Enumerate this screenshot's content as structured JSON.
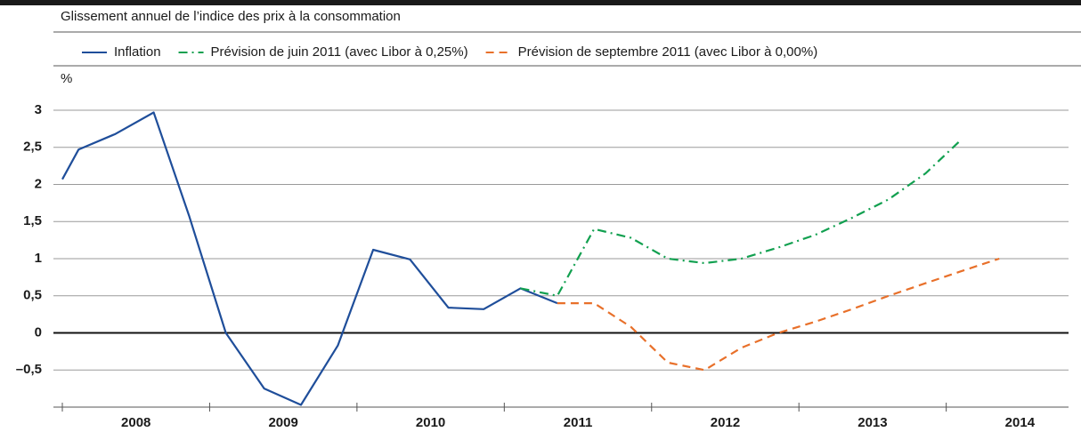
{
  "chart_data": {
    "type": "line",
    "subtitle": "Glissement annuel de l’indice des prix à la consommation",
    "y_label": "%",
    "xlim": [
      2008,
      2014.8
    ],
    "xticks": [
      {
        "value": 2008.5,
        "label": "2008"
      },
      {
        "value": 2009.5,
        "label": "2009"
      },
      {
        "value": 2010.5,
        "label": "2010"
      },
      {
        "value": 2011.5,
        "label": "2011"
      },
      {
        "value": 2012.5,
        "label": "2012"
      },
      {
        "value": 2013.5,
        "label": "2013"
      },
      {
        "value": 2014.5,
        "label": "2014"
      }
    ],
    "ylim": [
      -1,
      3
    ],
    "yticks": [
      {
        "value": -0.5,
        "label": "–0,5"
      },
      0,
      {
        "value": 0.5,
        "label": "0,5"
      },
      1,
      {
        "value": 1.5,
        "label": "1,5"
      },
      2,
      {
        "value": 2.5,
        "label": "2,5"
      },
      3
    ],
    "grid": true,
    "series": [
      {
        "name": "Inflation",
        "color": "#1f4e9a",
        "dash": "solid",
        "x": [
          2008.0,
          2008.11,
          2008.36,
          2008.62,
          2008.86,
          2009.11,
          2009.37,
          2009.62,
          2009.87,
          2010.11,
          2010.36,
          2010.62,
          2010.86,
          2011.11,
          2011.36
        ],
        "values": [
          2.07,
          2.47,
          2.68,
          2.97,
          1.58,
          0.0,
          -0.75,
          -0.97,
          -0.17,
          1.12,
          0.99,
          0.34,
          0.32,
          0.6,
          0.4
        ]
      },
      {
        "name": "Prévision de juin 2011 (avec Libor à 0,25%)",
        "color": "#12a050",
        "dash": "dashdot",
        "x": [
          2011.11,
          2011.36,
          2011.61,
          2011.86,
          2012.11,
          2012.36,
          2012.61,
          2012.86,
          2013.11,
          2013.36,
          2013.61,
          2013.86,
          2014.1
        ],
        "values": [
          0.6,
          0.5,
          1.4,
          1.28,
          1.0,
          0.94,
          1.0,
          1.15,
          1.32,
          1.55,
          1.8,
          2.15,
          2.6
        ]
      },
      {
        "name": "Prévision de septembre 2011 (avec Libor à 0,00%)",
        "color": "#e8702a",
        "dash": "dashed",
        "x": [
          2011.36,
          2011.61,
          2011.86,
          2012.11,
          2012.36,
          2012.61,
          2012.86,
          2013.11,
          2013.36,
          2013.61,
          2013.86,
          2014.1,
          2014.36
        ],
        "values": [
          0.4,
          0.4,
          0.08,
          -0.4,
          -0.5,
          -0.2,
          0.0,
          0.15,
          0.32,
          0.5,
          0.67,
          0.83,
          1.0
        ]
      }
    ]
  }
}
